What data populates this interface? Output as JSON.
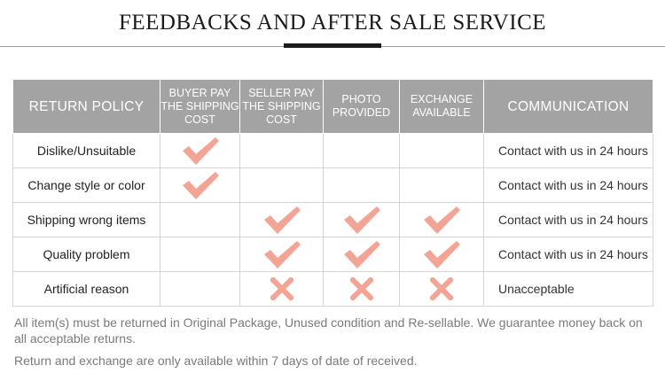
{
  "title": "FEEDBACKS AND AFTER SALE SERVICE",
  "table": {
    "headers": [
      "RETURN POLICY",
      "BUYER PAY THE SHIPPING COST",
      "SELLER PAY THE SHIPPING COST",
      "PHOTO PROVIDED",
      "EXCHANGE AVAILABLE",
      "COMMUNICATION"
    ],
    "rows": [
      {
        "reason": "Dislike/Unsuitable",
        "marks": [
          "check",
          "",
          "",
          ""
        ],
        "communication": "Contact with us in 24 hours"
      },
      {
        "reason": "Change style or color",
        "marks": [
          "check",
          "",
          "",
          ""
        ],
        "communication": "Contact with us in 24 hours"
      },
      {
        "reason": "Shipping wrong items",
        "marks": [
          "",
          "check",
          "check",
          "check"
        ],
        "communication": "Contact with us in 24 hours"
      },
      {
        "reason": "Quality problem",
        "marks": [
          "",
          "check",
          "check",
          "check"
        ],
        "communication": "Contact with us in 24 hours"
      },
      {
        "reason": "Artificial reason",
        "marks": [
          "",
          "cross",
          "cross",
          "cross"
        ],
        "communication": "Unacceptable"
      }
    ]
  },
  "mark_color": "#f4a494",
  "notes": [
    "All item(s) must be returned in Original Package, Unused condition and Re-sellable. We guarantee money back on all acceptable returns.",
    "Return and exchange are only available within 7 days of date of received."
  ]
}
